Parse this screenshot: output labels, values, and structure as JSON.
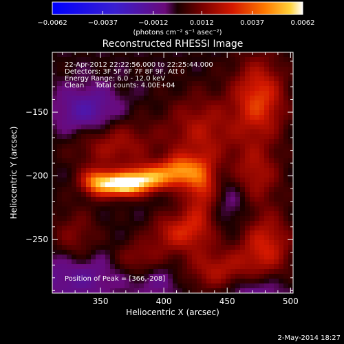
{
  "chart_data": {
    "type": "heatmap",
    "title": "Reconstructed RHESSI Image",
    "xlabel": "Heliocentric X (arcsec)",
    "ylabel": "Heliocentric Y (arcsec)",
    "xlim": [
      312,
      502
    ],
    "ylim": [
      -292,
      -103
    ],
    "x_ticks": [
      350,
      400,
      450,
      500
    ],
    "y_ticks": [
      -150,
      -200,
      -250
    ],
    "colorbar": {
      "range": [
        -0.0062,
        0.0062
      ],
      "tick_values": [
        -0.0062,
        -0.0037,
        -0.0012,
        0.0012,
        0.0037,
        0.0062
      ],
      "tick_labels": [
        "−0.0062",
        "−0.0037",
        "−0.0012",
        "0.0012",
        "0.0037",
        "0.0062"
      ],
      "unit_label": "(photons cm⁻² s⁻¹ asec⁻²)"
    },
    "info_lines": [
      "22-Apr-2012 22:22:56.000 to 22:25:44.000",
      "Detectors: 3F 5F 6F 7F 8F 9F, Att 0",
      "Energy Range: 6.0 - 12.0 keV",
      "Clean     Total counts: 4.00E+04"
    ],
    "peak_label": "Position of Peak = [366,-208]",
    "peak": [
      366,
      -208
    ],
    "date_stamp": "2-May-2014 18:27",
    "sources": [
      {
        "x": 368,
        "y": -207,
        "amp": 0.0061,
        "sx": 10,
        "sy": 6
      },
      {
        "x": 348,
        "y": -205,
        "amp": 0.0046,
        "sx": 9,
        "sy": 7
      },
      {
        "x": 388,
        "y": -202,
        "amp": 0.005,
        "sx": 12,
        "sy": 7
      },
      {
        "x": 412,
        "y": -196,
        "amp": 0.0038,
        "sx": 10,
        "sy": 8
      },
      {
        "x": 430,
        "y": -205,
        "amp": 0.003,
        "sx": 9,
        "sy": 14
      },
      {
        "x": 425,
        "y": -240,
        "amp": 0.0022,
        "sx": 12,
        "sy": 14
      },
      {
        "x": 405,
        "y": -245,
        "amp": 0.0018,
        "sx": 12,
        "sy": 10
      },
      {
        "x": 360,
        "y": -175,
        "amp": 0.002,
        "sx": 22,
        "sy": 14
      },
      {
        "x": 430,
        "y": -165,
        "amp": 0.002,
        "sx": 20,
        "sy": 20
      },
      {
        "x": 475,
        "y": -140,
        "amp": 0.0032,
        "sx": 14,
        "sy": 22
      },
      {
        "x": 470,
        "y": -200,
        "amp": 0.0022,
        "sx": 14,
        "sy": 16
      },
      {
        "x": 480,
        "y": -255,
        "amp": 0.0026,
        "sx": 14,
        "sy": 18
      },
      {
        "x": 445,
        "y": -275,
        "amp": 0.0022,
        "sx": 20,
        "sy": 12
      },
      {
        "x": 330,
        "y": -255,
        "amp": 0.0018,
        "sx": 14,
        "sy": 18
      },
      {
        "x": 380,
        "y": -265,
        "amp": 0.0016,
        "sx": 14,
        "sy": 10
      },
      {
        "x": 340,
        "y": -150,
        "amp": -0.002,
        "sx": 18,
        "sy": 14
      },
      {
        "x": 330,
        "y": -275,
        "amp": -0.002,
        "sx": 22,
        "sy": 16
      },
      {
        "x": 470,
        "y": -290,
        "amp": -0.0016,
        "sx": 18,
        "sy": 12
      },
      {
        "x": 455,
        "y": -215,
        "amp": -0.0012,
        "sx": 12,
        "sy": 18
      },
      {
        "x": 395,
        "y": -282,
        "amp": -0.001,
        "sx": 16,
        "sy": 10
      }
    ],
    "grid": false,
    "legend": "none"
  }
}
